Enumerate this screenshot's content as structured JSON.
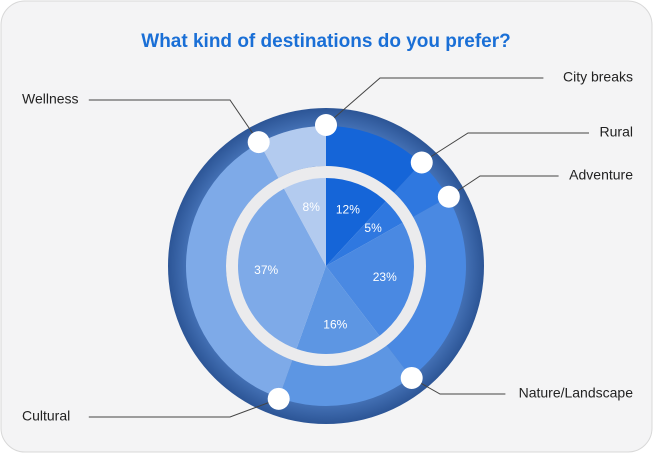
{
  "chart_data": {
    "type": "pie",
    "title": "What kind of destinations do you prefer?",
    "categories": [
      "City breaks",
      "Rural",
      "Adventure",
      "Nature/Landscape",
      "Cultural",
      "Wellness"
    ],
    "values": [
      12,
      5,
      23,
      16,
      37,
      8
    ],
    "value_labels": [
      "12%",
      "5%",
      "23%",
      "16%",
      "37%",
      "8%"
    ],
    "colors": [
      "#1565d8",
      "#2f78e0",
      "#4a89e2",
      "#5d96e3",
      "#7eaae8",
      "#b3cbef"
    ]
  }
}
